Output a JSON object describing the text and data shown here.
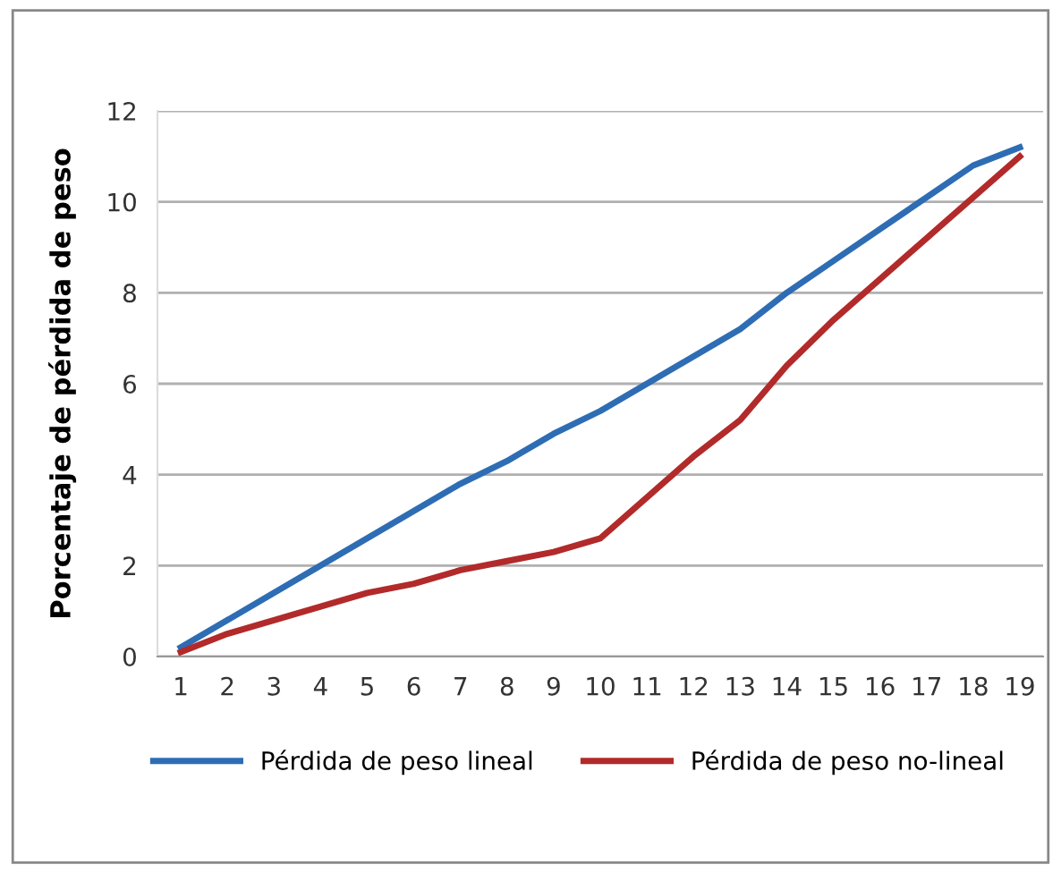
{
  "chart_data": {
    "type": "line",
    "ylabel": "Porcentaje de pérdida de peso",
    "categories": [
      "1",
      "2",
      "3",
      "4",
      "5",
      "6",
      "7",
      "8",
      "9",
      "10",
      "11",
      "12",
      "13",
      "14",
      "15",
      "16",
      "17",
      "18",
      "19"
    ],
    "series": [
      {
        "name": "Pérdida de peso lineal",
        "color": "#2e6db4",
        "values": [
          0.2,
          0.8,
          1.4,
          2.0,
          2.6,
          3.2,
          3.8,
          4.3,
          4.9,
          5.4,
          6.0,
          6.6,
          7.2,
          8.0,
          8.7,
          9.4,
          10.1,
          10.8,
          11.2
        ]
      },
      {
        "name": "Pérdida de peso no-lineal",
        "color": "#b22a2a",
        "values": [
          0.1,
          0.5,
          0.8,
          1.1,
          1.4,
          1.6,
          1.9,
          2.1,
          2.3,
          2.6,
          3.5,
          4.4,
          5.2,
          6.4,
          7.4,
          8.3,
          9.2,
          10.1,
          11.0
        ]
      }
    ],
    "ylim": [
      0,
      12
    ],
    "yticks": [
      0,
      2,
      4,
      6,
      8,
      10,
      12
    ],
    "grid": "y",
    "legend": "bottom",
    "marker": "none",
    "line_style": "solid"
  }
}
